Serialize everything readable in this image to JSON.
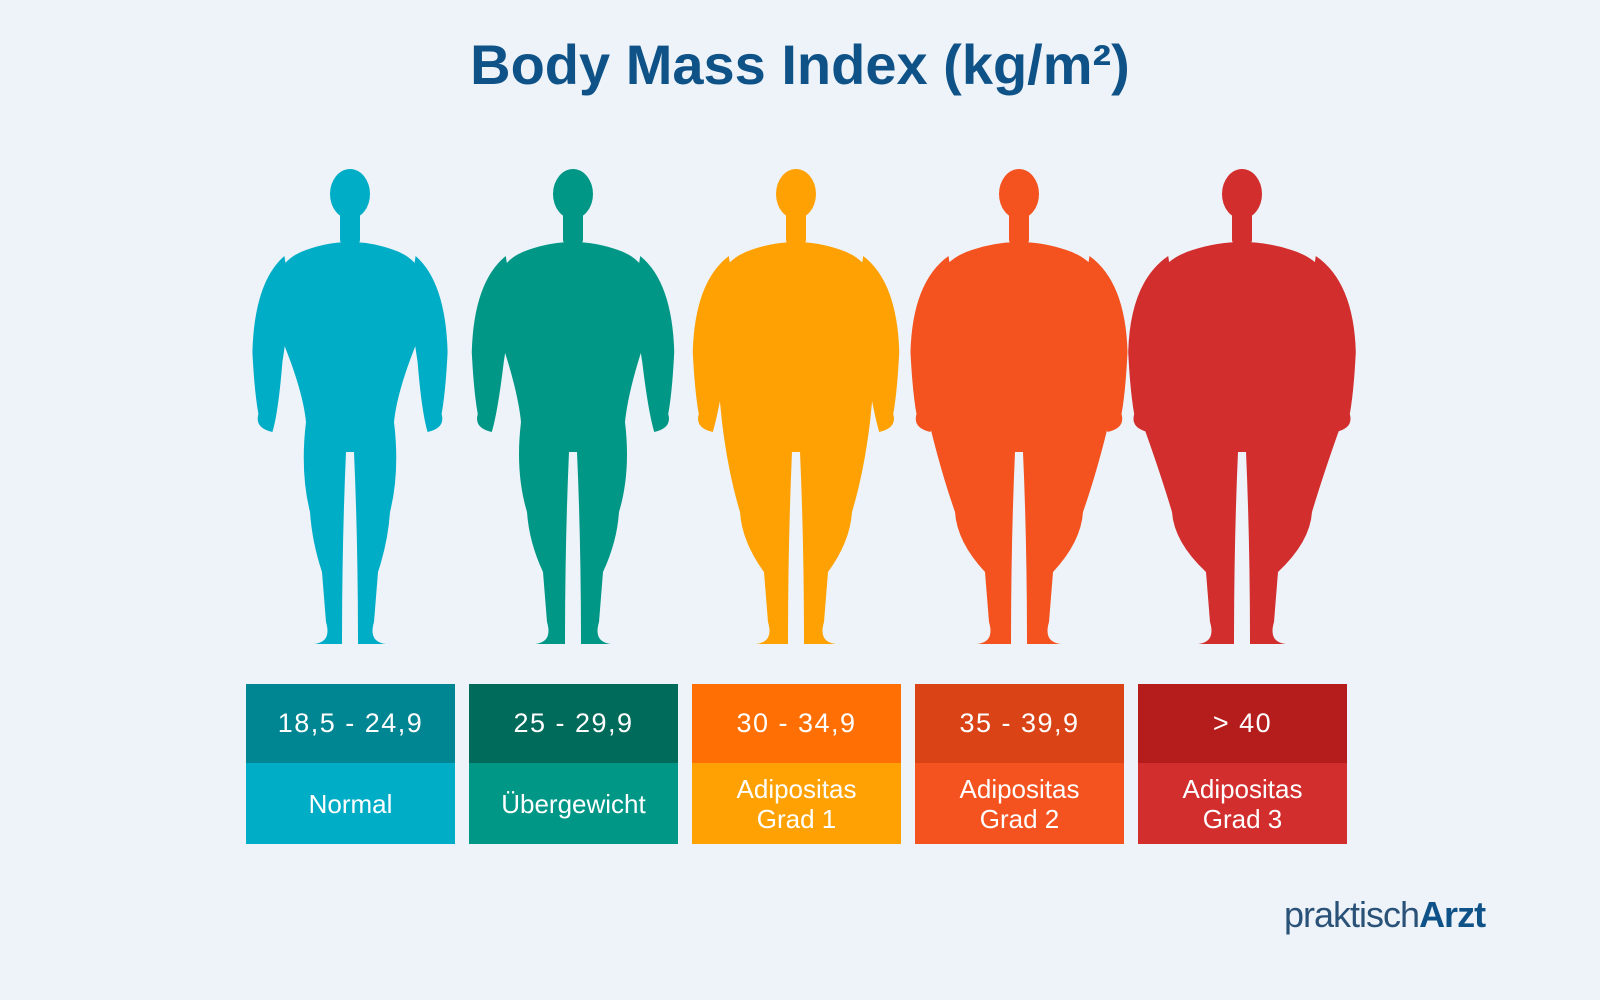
{
  "title": "Body Mass Index (kg/m²)",
  "categories": [
    {
      "range": "18,5 - 24,9",
      "label": "Normal",
      "figure_color": "#00adc7",
      "range_color": "#008592",
      "label_color": "#00adc7"
    },
    {
      "range": "25 - 29,9",
      "label": "Übergewicht",
      "figure_color": "#009786",
      "range_color": "#006a5b",
      "label_color": "#009786"
    },
    {
      "range": "30 - 34,9",
      "label": "Adipositas\nGrad 1",
      "figure_color": "#ffa103",
      "range_color": "#ff6f03",
      "label_color": "#ffa103"
    },
    {
      "range": "35 - 39,9",
      "label": "Adipositas\nGrad 2",
      "figure_color": "#f4521f",
      "range_color": "#d94316",
      "label_color": "#f4521f"
    },
    {
      "range": "> 40",
      "label": "Adipositas\nGrad 3",
      "figure_color": "#d32e2e",
      "range_color": "#b51d1d",
      "label_color": "#d32e2e"
    }
  ],
  "logo": {
    "light": "praktisch",
    "bold": "Arzt"
  }
}
